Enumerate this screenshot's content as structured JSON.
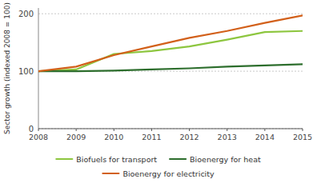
{
  "chart_data": {
    "type": "line",
    "x": [
      2008,
      2009,
      2010,
      2011,
      2012,
      2013,
      2014,
      2015
    ],
    "xlim": [
      2008,
      2015
    ],
    "xticks": [
      2008,
      2009,
      2010,
      2011,
      2012,
      2013,
      2014,
      2015
    ],
    "y_label": "Sector growth (indexed 2008 = 100)",
    "ylim": [
      0,
      210
    ],
    "yticks": [
      0,
      100,
      200
    ],
    "grid": true,
    "legend": "bottom",
    "series": [
      {
        "name": "Biofuels for transport",
        "color": "#8dc63f",
        "values": [
          100,
          103,
          130,
          135,
          143,
          155,
          168,
          170
        ]
      },
      {
        "name": "Bioenergy for heat",
        "color": "#2d6e2d",
        "values": [
          100,
          100,
          101,
          103,
          105,
          108,
          110,
          112
        ]
      },
      {
        "name": "Bioenergy for electricity",
        "color": "#d2601a",
        "values": [
          100,
          108,
          128,
          143,
          158,
          170,
          184,
          197
        ]
      }
    ]
  }
}
